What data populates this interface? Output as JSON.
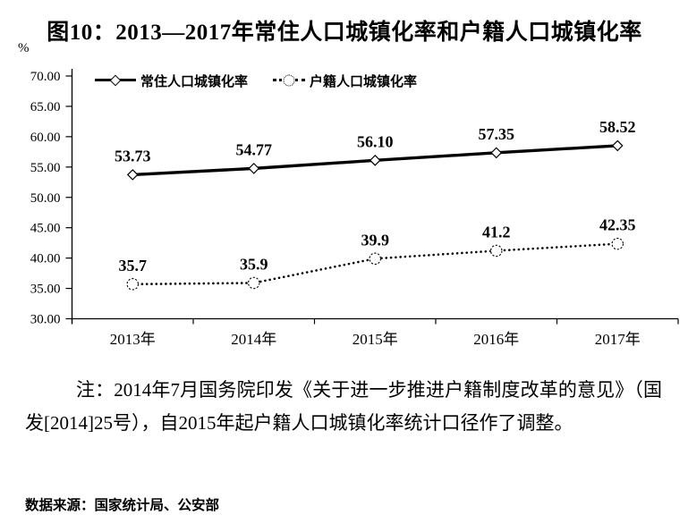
{
  "chart_data": {
    "type": "line",
    "title": "图10：2013—2017年常住人口城镇化率和户籍人口城镇化率",
    "ylabel": "%",
    "xlabel": "",
    "categories": [
      "2013年",
      "2014年",
      "2015年",
      "2016年",
      "2017年"
    ],
    "series": [
      {
        "name": "常住人口城镇化率",
        "line_style": "solid",
        "marker": "diamond",
        "values": [
          53.73,
          54.77,
          56.1,
          57.35,
          58.52
        ],
        "point_labels": [
          "53.73",
          "54.77",
          "56.10",
          "57.35",
          "58.52"
        ]
      },
      {
        "name": "户籍人口城镇化率",
        "line_style": "dotted",
        "marker": "circle",
        "values": [
          35.7,
          35.9,
          39.9,
          41.2,
          42.35
        ],
        "point_labels": [
          "35.7",
          "35.9",
          "39.9",
          "41.2",
          "42.35"
        ]
      }
    ],
    "ylim": [
      30,
      70
    ],
    "ytick_step": 5,
    "ytick_labels": [
      "70.00",
      "65.00",
      "60.00",
      "55.00",
      "50.00",
      "45.00",
      "40.00",
      "35.00",
      "30.00"
    ],
    "grid": false,
    "legend_position": "top-inside",
    "line_color": "#000000",
    "background_color": "#ffffff"
  },
  "note": {
    "text": "注：2014年7月国务院印发《关于进一步推进户籍制度改革的意见》（国发[2014]25号），自2015年起户籍人口城镇化率统计口径作了调整。"
  },
  "source": {
    "text": "数据来源：国家统计局、公安部"
  }
}
